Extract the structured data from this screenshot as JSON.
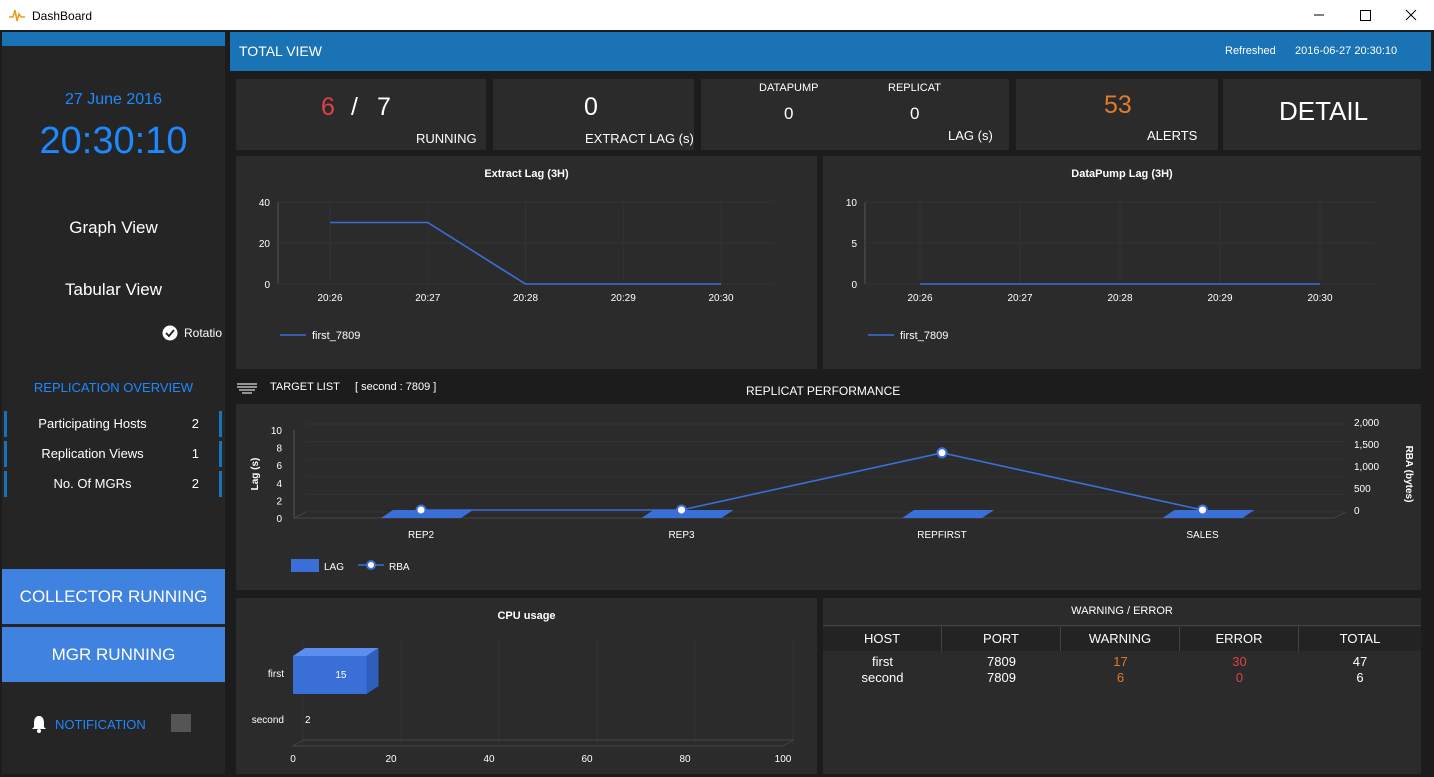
{
  "window": {
    "title": "DashBoard"
  },
  "header": {
    "title": "TOTAL VIEW",
    "refreshed_label": "Refreshed",
    "refreshed_value": "2016-06-27 20:30:10"
  },
  "sidebar": {
    "date": "27 June 2016",
    "time": "20:30:10",
    "graph_view": "Graph View",
    "tabular_view": "Tabular View",
    "rotation_label": "Rotatio",
    "rotation_checked": true,
    "overview_title": "REPLICATION OVERVIEW",
    "stats": [
      {
        "label": "Participating Hosts",
        "value": "2"
      },
      {
        "label": "Replication Views",
        "value": "1"
      },
      {
        "label": "No. Of MGRs",
        "value": "2"
      }
    ],
    "collector_button": "COLLECTOR RUNNING",
    "mgr_button": "MGR RUNNING",
    "notification_label": "NOTIFICATION"
  },
  "kpis": {
    "running_count": "6",
    "running_separator": "/",
    "running_total": "7",
    "running_label": "RUNNING",
    "extract_lag_value": "0",
    "extract_lag_label": "EXTRACT LAG (s)",
    "datapump_label": "DATAPUMP",
    "datapump_value": "0",
    "replicat_label": "REPLICAT",
    "replicat_value": "0",
    "lag_label": "LAG (s)",
    "alerts_value": "53",
    "alerts_label": "ALERTS",
    "detail_label": "DETAIL"
  },
  "target_list": {
    "label": "TARGET LIST",
    "target": "[ second : 7809 ]"
  },
  "colors": {
    "accent": "#1a73b4",
    "button_blue": "#3f82e0",
    "series_blue": "#3b6fd8",
    "red": "#e0404a",
    "orange": "#e07b2a",
    "date_blue": "#1e88ff"
  },
  "chart_data": [
    {
      "id": "extract_lag",
      "type": "line",
      "title": "Extract Lag (3H)",
      "x": [
        "20:26",
        "20:27",
        "20:28",
        "20:29",
        "20:30"
      ],
      "y_ticks": [
        0,
        20,
        40
      ],
      "ylim": [
        0,
        40
      ],
      "series": [
        {
          "name": "first_7809",
          "values": [
            30,
            30,
            0,
            0,
            0
          ]
        }
      ],
      "legend": "bottom-left"
    },
    {
      "id": "datapump_lag",
      "type": "line",
      "title": "DataPump Lag (3H)",
      "x": [
        "20:26",
        "20:27",
        "20:28",
        "20:29",
        "20:30"
      ],
      "y_ticks": [
        0,
        5,
        10
      ],
      "ylim": [
        0,
        10
      ],
      "series": [
        {
          "name": "first_7809",
          "values": [
            0,
            0,
            0,
            0,
            0
          ]
        }
      ],
      "legend": "bottom-left"
    },
    {
      "id": "replicat_performance",
      "type": "bar",
      "title": "REPLICAT PERFORMANCE",
      "categories": [
        "REP2",
        "REP3",
        "REPFIRST",
        "SALES"
      ],
      "ylabel": "Lag (s)",
      "y2label": "RBA (bytes)",
      "y_ticks": [
        0,
        2,
        4,
        6,
        8,
        10
      ],
      "y2_ticks": [
        "0",
        "500",
        "1,000",
        "1,500",
        "2,000"
      ],
      "ylim": [
        0,
        10
      ],
      "y2lim": [
        0,
        2000
      ],
      "series": [
        {
          "name": "LAG",
          "type": "bar",
          "values": [
            0,
            0,
            0,
            0
          ]
        },
        {
          "name": "RBA",
          "type": "line",
          "values": [
            0,
            0,
            1300,
            0
          ]
        }
      ],
      "legend": "bottom-left"
    },
    {
      "id": "cpu_usage",
      "type": "bar",
      "orientation": "horizontal",
      "title": "CPU usage",
      "categories": [
        "first",
        "second"
      ],
      "values": [
        15,
        2
      ],
      "x_ticks": [
        0,
        20,
        40,
        60,
        80,
        100
      ],
      "xlim": [
        0,
        100
      ]
    }
  ],
  "warning_table": {
    "title": "WARNING / ERROR",
    "columns": [
      "HOST",
      "PORT",
      "WARNING",
      "ERROR",
      "TOTAL"
    ],
    "rows": [
      {
        "host": "first",
        "port": "7809",
        "warning": "17",
        "error": "30",
        "total": "47"
      },
      {
        "host": "second",
        "port": "7809",
        "warning": "6",
        "error": "0",
        "total": "6"
      }
    ]
  }
}
